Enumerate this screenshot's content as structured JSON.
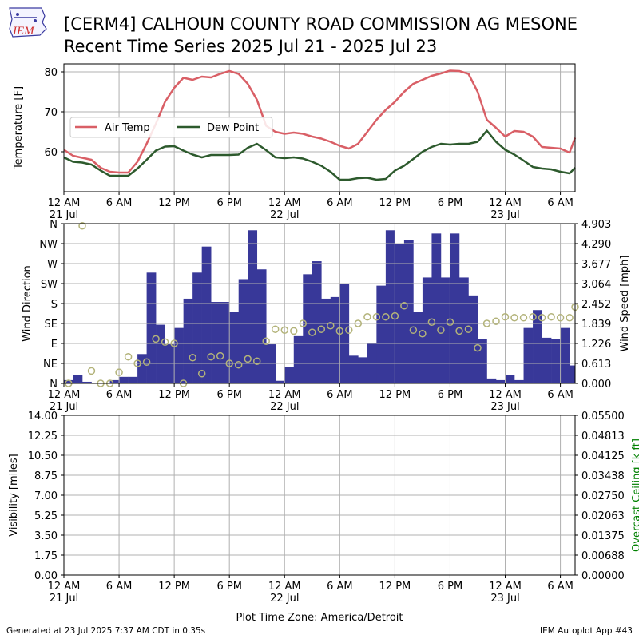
{
  "header": {
    "logo_text": "IEM",
    "title_line1": "[CERM4] CALHOUN COUNTY ROAD COMMISSION AG MESONE",
    "title_line2": "Recent Time Series 2025 Jul 21 - 2025 Jul 23"
  },
  "footer": {
    "generated": "Generated at 23 Jul 2025 7:37 AM CDT in 0.35s",
    "app": "IEM Autoplot App #43",
    "timezone_label": "Plot Time Zone: America/Detroit"
  },
  "colors": {
    "air_temp": "#d95f66",
    "dew_point": "#2d5a2d",
    "wind_speed_bar": "#383899",
    "wind_dir_marker": "#b3b37a",
    "ceiling_axis_label": "#008000",
    "grid": "#b0b0b0"
  },
  "chart_data": [
    {
      "type": "line",
      "ylabel": "Temperature [F]",
      "ylim": [
        50,
        82
      ],
      "xlim": [
        0,
        55.6
      ],
      "yticks": [
        60,
        70,
        80
      ],
      "x_ticks": [
        {
          "x": 0,
          "label": "12 AM",
          "sub": "21 Jul"
        },
        {
          "x": 6,
          "label": "6 AM",
          "sub": ""
        },
        {
          "x": 12,
          "label": "12 PM",
          "sub": ""
        },
        {
          "x": 18,
          "label": "6 PM",
          "sub": ""
        },
        {
          "x": 24,
          "label": "12 AM",
          "sub": "22 Jul"
        },
        {
          "x": 30,
          "label": "6 AM",
          "sub": ""
        },
        {
          "x": 36,
          "label": "12 PM",
          "sub": ""
        },
        {
          "x": 42,
          "label": "6 PM",
          "sub": ""
        },
        {
          "x": 48,
          "label": "12 AM",
          "sub": "23 Jul"
        },
        {
          "x": 54,
          "label": "6 AM",
          "sub": ""
        }
      ],
      "grid": true,
      "legend_position": "center-left",
      "series": [
        {
          "name": "Air Temp",
          "x": [
            0,
            1,
            2,
            3,
            4,
            5,
            6,
            7,
            8,
            9,
            10,
            11,
            12,
            13,
            14,
            15,
            16,
            17,
            18,
            19,
            20,
            21,
            22,
            23,
            24,
            25,
            26,
            27,
            28,
            29,
            30,
            31,
            32,
            33,
            34,
            35,
            36,
            37,
            38,
            39,
            40,
            41,
            42,
            43,
            44,
            45,
            46,
            47,
            48,
            49,
            50,
            51,
            52,
            53,
            54,
            55,
            55.6
          ],
          "values": [
            60.5,
            59,
            58.5,
            58,
            56,
            55,
            54.8,
            54.8,
            57.5,
            62,
            67,
            72.5,
            76,
            78.5,
            78,
            78.8,
            78.6,
            79.5,
            80.2,
            79.5,
            77,
            73,
            66.5,
            65,
            64.5,
            64.8,
            64.5,
            63.8,
            63.3,
            62.5,
            61.5,
            60.8,
            62,
            65,
            68,
            70.5,
            72.5,
            75,
            77,
            78,
            79,
            79.6,
            80.3,
            80.2,
            79.5,
            75,
            68,
            66,
            63.8,
            65.2,
            65,
            63.8,
            61.2,
            61,
            60.8,
            59.8,
            63.5
          ]
        },
        {
          "name": "Dew Point",
          "x": [
            0,
            1,
            2,
            3,
            4,
            5,
            6,
            7,
            8,
            9,
            10,
            11,
            12,
            13,
            14,
            15,
            16,
            17,
            18,
            19,
            20,
            21,
            22,
            23,
            24,
            25,
            26,
            27,
            28,
            29,
            30,
            31,
            32,
            33,
            34,
            35,
            36,
            37,
            38,
            39,
            40,
            41,
            42,
            43,
            44,
            45,
            46,
            47,
            48,
            49,
            50,
            51,
            52,
            53,
            54,
            55,
            55.6
          ],
          "values": [
            58.6,
            57.5,
            57.3,
            56.8,
            55.3,
            54,
            54,
            54,
            55.8,
            58,
            60.3,
            61.3,
            61.4,
            60.3,
            59.3,
            58.6,
            59.2,
            59.2,
            59.2,
            59.3,
            61,
            62,
            60.4,
            58.6,
            58.4,
            58.6,
            58.3,
            57.5,
            56.5,
            55,
            53,
            53,
            53.4,
            53.5,
            53,
            53.2,
            55.3,
            56.5,
            58.2,
            60,
            61.2,
            62,
            61.8,
            62,
            62,
            62.5,
            65.3,
            62.5,
            60.5,
            59.3,
            57.8,
            56.2,
            55.8,
            55.6,
            55,
            54.6,
            56
          ]
        }
      ]
    },
    {
      "type": "bar",
      "ylabel": "Wind Direction",
      "y2label": "Wind Speed [mph]",
      "dir_ylim": [
        0,
        360
      ],
      "dir_ticks": [
        "N",
        "NE",
        "E",
        "SE",
        "S",
        "SW",
        "W",
        "NW",
        "N"
      ],
      "speed_ylim": [
        0,
        4.903
      ],
      "speed_ticks": [
        "0.000",
        "0.613",
        "1.226",
        "1.839",
        "2.452",
        "3.064",
        "3.677",
        "4.290",
        "4.903"
      ],
      "xlim": [
        0,
        55.6
      ],
      "grid": true,
      "series": [
        {
          "name": "",
          "x_start": 0,
          "bar_width": 1,
          "values": [
            0.1,
            0.25,
            0.05,
            0.0,
            0.0,
            0.1,
            0.2,
            0.2,
            0.9,
            3.4,
            1.8,
            1.2,
            1.7,
            2.6,
            3.4,
            4.2,
            2.5,
            2.5,
            2.2,
            3.2,
            4.7,
            3.5,
            1.2,
            0.08,
            0.5,
            1.45,
            3.35,
            3.75,
            2.6,
            2.65,
            3.05,
            0.85,
            0.8,
            1.25,
            3.0,
            4.7,
            4.3,
            4.4,
            2.2,
            3.25,
            4.6,
            3.25,
            4.6,
            3.25,
            2.7,
            1.35,
            0.15,
            0.1,
            0.25,
            0.1,
            1.7,
            2.25,
            1.4,
            1.35,
            1.7,
            0.55,
            0.55
          ]
        },
        {
          "name": "",
          "type": "scatter",
          "x": [
            0.5,
            2,
            3,
            4,
            5,
            6,
            7,
            8,
            9,
            10,
            11,
            12,
            13,
            14,
            15,
            16,
            17,
            18,
            19,
            20,
            21,
            22,
            23,
            24,
            25,
            26,
            27,
            28,
            29,
            30,
            31,
            32,
            33,
            34,
            35,
            36,
            37,
            38,
            39,
            40,
            41,
            42,
            43,
            44,
            45,
            46,
            47,
            48,
            49,
            50,
            51,
            52,
            53,
            54,
            55,
            55.6
          ],
          "values": [
            0,
            355,
            28,
            0,
            0,
            25,
            60,
            45,
            48,
            100,
            93,
            90,
            0,
            58,
            22,
            60,
            62,
            45,
            42,
            55,
            50,
            95,
            122,
            120,
            118,
            135,
            115,
            122,
            130,
            118,
            120,
            135,
            150,
            150,
            150,
            152,
            175,
            120,
            112,
            138,
            120,
            138,
            118,
            122,
            80,
            135,
            140,
            150,
            148,
            148,
            150,
            148,
            150,
            148,
            148,
            172
          ]
        }
      ]
    },
    {
      "type": "line",
      "ylabel": "Visibility [miles]",
      "y2label": "Overcast Ceiling [k ft]",
      "vis_ticks": [
        "0.00",
        "1.75",
        "3.50",
        "5.25",
        "7.00",
        "8.75",
        "10.50",
        "12.25",
        "14.00"
      ],
      "ceiling_ticks": [
        "0.00000",
        "0.00688",
        "0.01375",
        "0.02063",
        "0.02750",
        "0.03438",
        "0.04125",
        "0.04813",
        "0.05500"
      ],
      "ylim": [
        0,
        14
      ],
      "y2lim": [
        0,
        0.055
      ],
      "xlim": [
        0,
        55.6
      ],
      "grid": true,
      "series": []
    }
  ]
}
